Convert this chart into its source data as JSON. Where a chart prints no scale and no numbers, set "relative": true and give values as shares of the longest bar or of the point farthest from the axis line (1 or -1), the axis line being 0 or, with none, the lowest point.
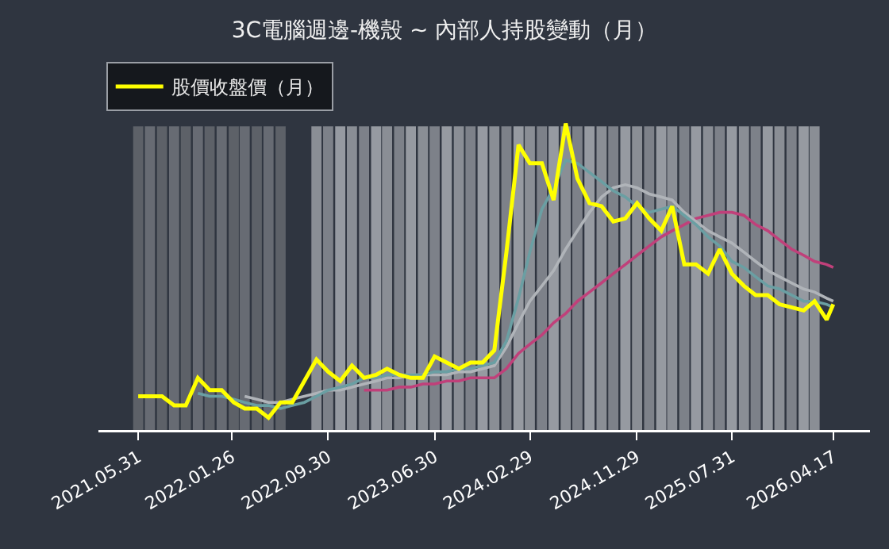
{
  "chart_data": {
    "type": "line",
    "title": "3C電腦週邊-機殼 ~ 內部人持股變動（月）",
    "relative": true,
    "legend": "top left",
    "tick_labels": "x",
    "x": [
      "2021-05-31",
      "2021-06-30",
      "2021-07-31",
      "2021-08-31",
      "2021-09-30",
      "2021-10-31",
      "2021-11-30",
      "2021-12-31",
      "2022-01-31",
      "2022-02-28",
      "2022-03-31",
      "2022-04-30",
      "2022-05-31",
      "2022-06-30",
      "2022-07-31",
      "2022-08-31",
      "2022-09-30",
      "2022-10-31",
      "2022-11-30",
      "2022-12-31",
      "2023-01-31",
      "2023-02-28",
      "2023-03-31",
      "2023-04-30",
      "2023-05-31",
      "2023-06-30",
      "2023-07-31",
      "2023-08-31",
      "2023-09-30",
      "2023-10-31",
      "2023-11-30",
      "2023-12-31",
      "2024-01-31",
      "2024-02-29",
      "2024-03-31",
      "2024-04-30",
      "2024-05-31",
      "2024-06-30",
      "2024-07-31",
      "2024-08-31",
      "2024-09-30",
      "2024-10-31",
      "2024-11-30",
      "2024-12-31",
      "2025-01-31",
      "2025-02-28",
      "2025-03-31",
      "2025-04-30",
      "2025-05-31",
      "2025-06-30",
      "2025-07-31",
      "2025-08-31",
      "2025-09-30",
      "2025-10-31",
      "2025-11-30",
      "2025-12-31",
      "2026-01-31",
      "2026-02-28",
      "2026-03-31",
      "2026-04-17"
    ],
    "xlim": [
      "2021-02-18",
      "2026-07-20"
    ],
    "xticks": [
      {
        "value": "2021-05-31",
        "label": "2021.05.31"
      },
      {
        "value": "2022-01-26",
        "label": "2022.01.26"
      },
      {
        "value": "2022-09-30",
        "label": "2022.09.30"
      },
      {
        "value": "2023-06-30",
        "label": "2023.06.30"
      },
      {
        "value": "2024-02-29",
        "label": "2024.02.29"
      },
      {
        "value": "2024-11-29",
        "label": "2024.11.29"
      },
      {
        "value": "2025-07-31",
        "label": "2025.07.31"
      },
      {
        "value": "2026-04-17",
        "label": "2026.04.17"
      }
    ],
    "series": [
      {
        "type": "bar",
        "axis": "y2",
        "colors": [
          "#5d6168",
          "#676b73",
          "#5d6168",
          "#676b73",
          "#5d6168",
          "#676b73",
          "#5d6168",
          "#676b73",
          "#5d6168",
          "#676b73",
          "#5d6168",
          "#676b73",
          "#5d6168",
          null,
          null,
          "#8a8e95",
          "#7d8189",
          "#969aa1",
          "#8a8e95",
          "#7d8189",
          "#969aa1",
          "#8a8e95",
          "#7d8189",
          "#969aa1",
          "#8a8e95",
          "#7d8189",
          "#969aa1",
          "#8a8e95",
          "#7d8189",
          "#969aa1",
          "#8a8e95",
          "#7d8189",
          "#969aa1",
          "#8a8e95",
          "#7d8189",
          "#969aa1",
          "#8a8e95",
          "#7d8189",
          "#969aa1",
          "#8a8e95",
          "#7d8189",
          "#969aa1",
          "#8a8e95",
          "#7d8189",
          "#969aa1",
          "#8a8e95",
          "#7d8189",
          "#969aa1",
          "#8a8e95",
          "#7d8189",
          "#969aa1",
          "#8a8e95",
          "#7d8189",
          "#969aa1",
          "#8a8e95",
          "#7d8189",
          "#969aa1",
          "#8a8e95",
          null,
          null
        ],
        "values": [
          1,
          1,
          1,
          1,
          1,
          1,
          1,
          1,
          1,
          1,
          1,
          1,
          1,
          null,
          null,
          1,
          1,
          1,
          1,
          1,
          1,
          1,
          1,
          1,
          1,
          1,
          1,
          1,
          1,
          1,
          1,
          1,
          1,
          1,
          1,
          1,
          1,
          1,
          1,
          1,
          1,
          1,
          1,
          1,
          1,
          1,
          1,
          1,
          1,
          1,
          1,
          1,
          1,
          1,
          1,
          1,
          1,
          1,
          null,
          null
        ]
      },
      {
        "color": "#c0407a",
        "values": [
          null,
          null,
          null,
          null,
          null,
          null,
          null,
          null,
          null,
          null,
          null,
          null,
          null,
          null,
          null,
          null,
          null,
          null,
          null,
          0.13,
          0.13,
          0.13,
          0.14,
          0.14,
          0.15,
          0.15,
          0.16,
          0.16,
          0.17,
          0.17,
          0.17,
          0.2,
          0.25,
          0.28,
          0.31,
          0.35,
          0.38,
          0.42,
          0.45,
          0.48,
          0.51,
          0.54,
          0.57,
          0.6,
          0.63,
          0.65,
          0.67,
          0.69,
          0.7,
          0.71,
          0.71,
          0.7,
          0.67,
          0.65,
          0.62,
          0.59,
          0.57,
          0.55,
          0.54,
          0.53
        ]
      },
      {
        "color": "#b0b4b9",
        "values": [
          null,
          null,
          null,
          null,
          null,
          null,
          null,
          null,
          null,
          0.11,
          0.1,
          0.09,
          0.09,
          0.1,
          0.11,
          0.12,
          0.13,
          0.13,
          0.14,
          0.15,
          0.16,
          0.17,
          0.17,
          0.18,
          0.18,
          0.18,
          0.18,
          0.19,
          0.19,
          0.2,
          0.21,
          0.27,
          0.35,
          0.42,
          0.47,
          0.52,
          0.59,
          0.65,
          0.71,
          0.76,
          0.79,
          0.8,
          0.79,
          0.77,
          0.76,
          0.75,
          0.71,
          0.68,
          0.65,
          0.63,
          0.61,
          0.58,
          0.55,
          0.52,
          0.5,
          0.48,
          0.46,
          0.45,
          0.43,
          0.42
        ]
      },
      {
        "color": "#6a9fa3",
        "values": [
          null,
          null,
          null,
          null,
          null,
          0.12,
          0.11,
          0.11,
          0.1,
          0.09,
          0.08,
          0.08,
          0.07,
          0.08,
          0.09,
          0.11,
          0.13,
          0.14,
          0.15,
          0.17,
          0.17,
          0.18,
          0.18,
          0.18,
          0.18,
          0.19,
          0.19,
          0.2,
          0.2,
          0.21,
          0.22,
          0.29,
          0.43,
          0.58,
          0.72,
          0.79,
          0.88,
          0.87,
          0.84,
          0.81,
          0.78,
          0.76,
          0.73,
          0.71,
          0.72,
          0.73,
          0.7,
          0.67,
          0.63,
          0.6,
          0.55,
          0.53,
          0.5,
          0.47,
          0.46,
          0.44,
          0.42,
          0.42,
          0.41,
          0.4
        ]
      },
      {
        "name": "股價收盤價（月）",
        "color": "#ffff00",
        "values": [
          0.11,
          0.11,
          0.11,
          0.08,
          0.08,
          0.17,
          0.13,
          0.13,
          0.09,
          0.07,
          0.07,
          0.04,
          0.09,
          0.09,
          0.16,
          0.23,
          0.19,
          0.16,
          0.21,
          0.17,
          0.18,
          0.2,
          0.18,
          0.17,
          0.17,
          0.24,
          0.22,
          0.2,
          0.22,
          0.22,
          0.26,
          0.58,
          0.93,
          0.87,
          0.87,
          0.75,
          1,
          0.82,
          0.74,
          0.73,
          0.68,
          0.69,
          0.74,
          0.69,
          0.65,
          0.73,
          0.54,
          0.54,
          0.51,
          0.59,
          0.51,
          0.47,
          0.44,
          0.44,
          0.41,
          0.4,
          0.39,
          0.42,
          0.36,
          0.41
        ]
      }
    ]
  }
}
